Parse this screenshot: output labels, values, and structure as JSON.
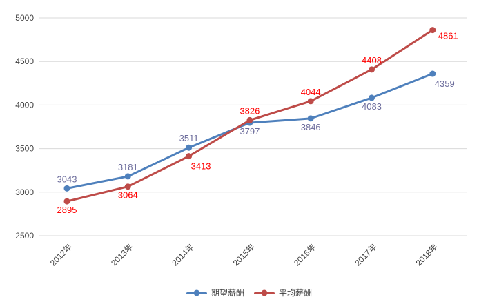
{
  "chart_data": {
    "type": "line",
    "title": "",
    "xlabel": "",
    "ylabel": "",
    "categories": [
      "2012年",
      "2013年",
      "2014年",
      "2015年",
      "2016年",
      "2017年",
      "2018年"
    ],
    "series": [
      {
        "name": "期望薪酬",
        "color": "#4E80BC",
        "label_color": "#6B6B9B",
        "values": [
          3043,
          3181,
          3511,
          3797,
          3846,
          4083,
          4359
        ],
        "label_sides": [
          "above",
          "above",
          "above",
          "below",
          "below",
          "below",
          "below-right"
        ]
      },
      {
        "name": "平均薪酬",
        "color": "#BE4B48",
        "label_color": "#FF0000",
        "values": [
          2895,
          3064,
          3413,
          3826,
          4044,
          4408,
          4861
        ],
        "label_sides": [
          "below",
          "below",
          "below-right",
          "above",
          "above",
          "above",
          "right"
        ]
      }
    ],
    "ylim": [
      2500,
      5000
    ],
    "yticks": [
      2500,
      3000,
      3500,
      4000,
      4500,
      5000
    ],
    "grid": true,
    "grid_color": "#D9D9D9",
    "axis_text_color": "#404040",
    "legend_position": "bottom",
    "background": "#FFFFFF"
  }
}
